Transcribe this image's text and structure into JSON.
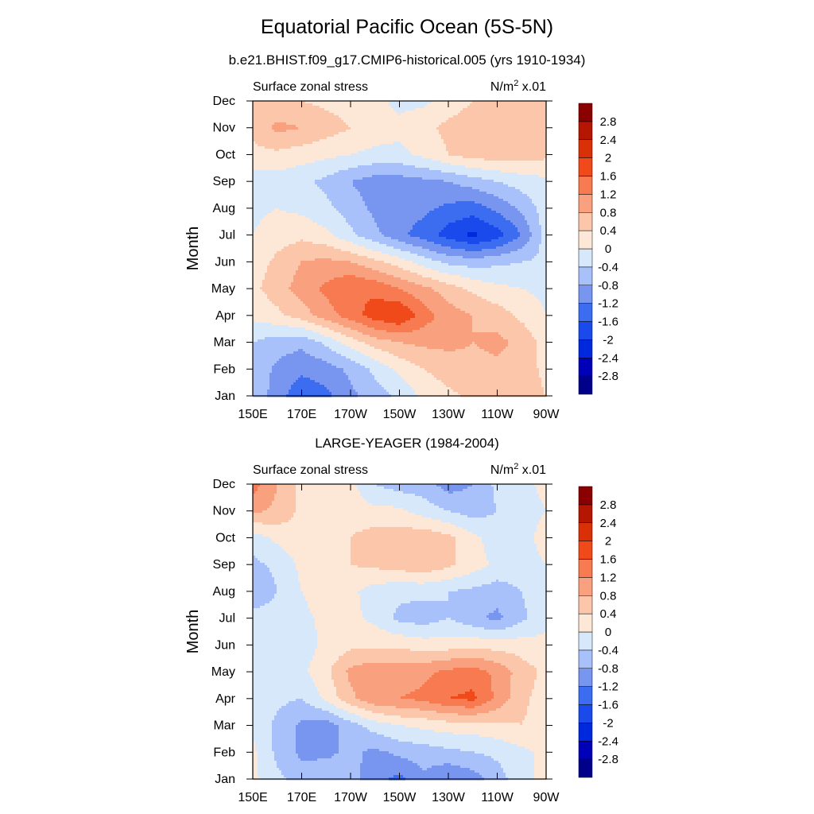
{
  "title": "Equatorial Pacific Ocean (5S-5N)",
  "panels": [
    {
      "subtitle": "b.e21.BHIST.f09_g17.CMIP6-historical.005 (yrs 1910-1934)",
      "left_label": "Surface zonal stress",
      "units_base": "N/m",
      "units_exp": "2",
      "units_scale": " x.01"
    },
    {
      "subtitle": "LARGE-YEAGER (1984-2004)",
      "left_label": "Surface zonal stress",
      "units_base": "N/m",
      "units_exp": "2",
      "units_scale": " x.01"
    }
  ],
  "chart_data": [
    {
      "type": "heatmap",
      "title": "b.e21.BHIST.f09_g17.CMIP6-historical.005 (yrs 1910-1934)",
      "variable": "Surface zonal stress",
      "units": "N/m2 x.01",
      "xlabel": "",
      "ylabel": "Month",
      "x_ticks": [
        "150E",
        "170E",
        "170W",
        "150W",
        "130W",
        "110W",
        "90W"
      ],
      "y_ticks": [
        "Jan",
        "Feb",
        "Mar",
        "Apr",
        "May",
        "Jun",
        "Jul",
        "Aug",
        "Sep",
        "Oct",
        "Nov",
        "Dec"
      ],
      "x_lon": [
        150,
        160,
        170,
        180,
        190,
        200,
        210,
        220,
        230,
        240,
        250,
        260,
        270
      ],
      "colorbar_levels": [
        -2.8,
        -2.4,
        -2,
        -1.6,
        -1.2,
        -0.8,
        -0.4,
        0,
        0.4,
        0.8,
        1.2,
        1.6,
        2,
        2.4,
        2.8
      ],
      "values": [
        [
          -0.5,
          -1.0,
          -1.5,
          -1.3,
          -0.9,
          -0.6,
          -0.3,
          0.1,
          0.3,
          0.5,
          0.6,
          0.6,
          0.4
        ],
        [
          -0.5,
          -0.9,
          -1.1,
          -1.0,
          -0.7,
          -0.3,
          0.1,
          0.4,
          0.6,
          0.7,
          0.7,
          0.6,
          0.3
        ],
        [
          -0.4,
          -0.6,
          -0.7,
          -0.3,
          0.2,
          0.6,
          0.8,
          0.9,
          0.9,
          0.8,
          0.9,
          0.7,
          0.2
        ],
        [
          0.1,
          0.3,
          0.6,
          1.0,
          1.4,
          1.8,
          2.0,
          1.4,
          1.0,
          0.8,
          0.6,
          0.3,
          0.0
        ],
        [
          0.3,
          0.6,
          1.0,
          1.3,
          1.6,
          1.5,
          1.2,
          0.9,
          0.6,
          0.3,
          0.1,
          0.0,
          -0.1
        ],
        [
          0.2,
          0.5,
          0.8,
          0.9,
          0.8,
          0.5,
          0.2,
          -0.2,
          -0.5,
          -0.6,
          -0.5,
          -0.4,
          -0.3
        ],
        [
          0.0,
          0.2,
          0.3,
          0.1,
          -0.3,
          -0.7,
          -1.1,
          -1.4,
          -1.8,
          -2.1,
          -1.8,
          -1.2,
          -0.2
        ],
        [
          -0.1,
          0.0,
          -0.1,
          -0.3,
          -0.6,
          -0.9,
          -1.0,
          -1.1,
          -1.3,
          -1.4,
          -1.1,
          -0.7,
          -0.2
        ],
        [
          -0.2,
          -0.2,
          -0.3,
          -0.5,
          -0.8,
          -1.0,
          -1.0,
          -0.9,
          -0.8,
          -0.6,
          -0.4,
          -0.2,
          -0.1
        ],
        [
          0.3,
          0.3,
          0.2,
          0.1,
          0.0,
          -0.1,
          -0.1,
          0.1,
          0.4,
          0.6,
          0.6,
          0.6,
          0.5
        ],
        [
          0.5,
          0.9,
          0.8,
          0.6,
          0.4,
          0.2,
          0.1,
          0.3,
          0.5,
          0.6,
          0.6,
          0.6,
          0.5
        ],
        [
          0.4,
          0.5,
          0.4,
          0.3,
          0.2,
          0.1,
          -0.1,
          -0.1,
          0.2,
          0.4,
          0.5,
          0.5,
          0.4
        ]
      ]
    },
    {
      "type": "heatmap",
      "title": "LARGE-YEAGER (1984-2004)",
      "variable": "Surface zonal stress",
      "units": "N/m2 x.01",
      "xlabel": "",
      "ylabel": "Month",
      "x_ticks": [
        "150E",
        "170E",
        "170W",
        "150W",
        "130W",
        "110W",
        "90W"
      ],
      "y_ticks": [
        "Jan",
        "Feb",
        "Mar",
        "Apr",
        "May",
        "Jun",
        "Jul",
        "Aug",
        "Sep",
        "Oct",
        "Nov",
        "Dec"
      ],
      "x_lon": [
        150,
        160,
        170,
        180,
        190,
        200,
        210,
        220,
        230,
        240,
        250,
        260,
        270
      ],
      "colorbar_levels": [
        -2.8,
        -2.4,
        -2,
        -1.6,
        -1.2,
        -0.8,
        -0.4,
        0,
        0.4,
        0.8,
        1.2,
        1.6,
        2,
        2.4,
        2.8
      ],
      "values": [
        [
          0.1,
          -0.3,
          -0.6,
          -0.5,
          -0.6,
          -1.1,
          -1.3,
          -0.9,
          -1.2,
          -1.0,
          -0.6,
          -0.1,
          0.1
        ],
        [
          0.1,
          -0.5,
          -0.9,
          -0.9,
          -0.7,
          -0.9,
          -0.7,
          -0.6,
          -0.5,
          -0.4,
          -0.3,
          -0.1,
          0.1
        ],
        [
          -0.1,
          -0.5,
          -0.9,
          -1.0,
          -0.6,
          -0.2,
          0.0,
          0.1,
          0.2,
          0.2,
          0.3,
          0.4,
          0.2
        ],
        [
          -0.2,
          -0.3,
          -0.4,
          0.1,
          0.7,
          1.1,
          1.2,
          1.3,
          1.6,
          1.7,
          1.1,
          0.5,
          0.2
        ],
        [
          -0.3,
          -0.4,
          -0.1,
          0.3,
          0.9,
          1.1,
          1.0,
          1.1,
          1.3,
          1.4,
          1.1,
          0.6,
          0.3
        ],
        [
          -0.3,
          -0.3,
          -0.2,
          0.1,
          0.3,
          0.3,
          0.3,
          0.2,
          0.2,
          0.3,
          0.2,
          0.2,
          0.1
        ],
        [
          -0.2,
          -0.2,
          -0.1,
          0.1,
          0.1,
          -0.1,
          -0.5,
          -0.6,
          -0.4,
          -0.7,
          -0.9,
          -0.5,
          -0.1
        ],
        [
          -0.8,
          -0.4,
          0.0,
          0.2,
          0.1,
          -0.2,
          -0.3,
          -0.3,
          -0.4,
          -0.5,
          -0.6,
          -0.4,
          -0.1
        ],
        [
          -0.5,
          -0.3,
          0.1,
          0.3,
          0.4,
          0.5,
          0.6,
          0.7,
          0.5,
          0.2,
          -0.1,
          -0.2,
          0.0
        ],
        [
          -0.2,
          0.1,
          0.3,
          0.3,
          0.4,
          0.6,
          0.6,
          0.7,
          0.5,
          0.1,
          -0.2,
          -0.2,
          0.2
        ],
        [
          0.9,
          0.7,
          0.3,
          0.2,
          0.2,
          0.1,
          0.1,
          -0.2,
          -0.4,
          -0.6,
          -0.4,
          -0.2,
          0.0
        ],
        [
          1.4,
          0.8,
          0.3,
          0.2,
          0.1,
          -0.4,
          -0.6,
          -0.6,
          -1.0,
          -0.8,
          -0.3,
          -0.1,
          0.1
        ]
      ]
    }
  ],
  "colormap": {
    "colors": [
      "#00008b",
      "#0000b8",
      "#0028dc",
      "#1a4aeb",
      "#3c6cf0",
      "#7896f0",
      "#a9c1fb",
      "#d8e8fb",
      "#fde7d6",
      "#fbc6aa",
      "#f9a07e",
      "#f77a50",
      "#f14a1a",
      "#d93007",
      "#b51602",
      "#8b0000"
    ],
    "labels": [
      "-2.8",
      "-2.4",
      "-2",
      "-1.6",
      "-1.2",
      "-0.8",
      "-0.4",
      "0",
      "0.4",
      "0.8",
      "1.2",
      "1.6",
      "2",
      "2.4",
      "2.8"
    ]
  }
}
